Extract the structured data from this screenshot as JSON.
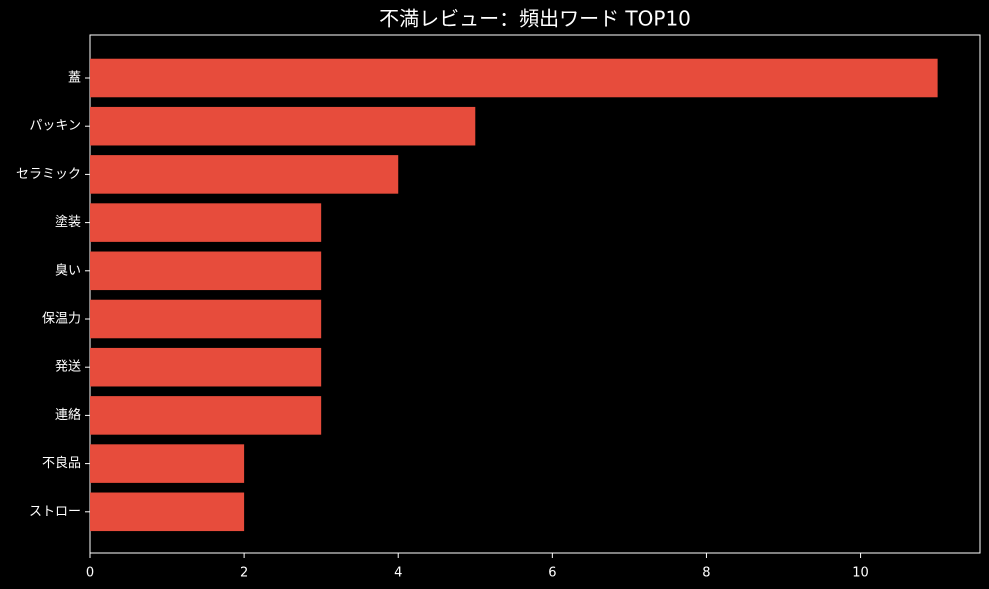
{
  "chart_data": {
    "type": "barh",
    "title": "不満レビュー：頻出ワード TOP10",
    "categories": [
      "蓋",
      "パッキン",
      "セラミック",
      "塗装",
      "臭い",
      "保温力",
      "発送",
      "連絡",
      "不良品",
      "ストロー"
    ],
    "values": [
      11,
      5,
      4,
      3,
      3,
      3,
      3,
      3,
      2,
      2
    ],
    "color": "#e74c3c",
    "xlim": [
      0,
      11.55
    ],
    "xticks": [
      0,
      2,
      4,
      6,
      8,
      10
    ],
    "grid": false
  }
}
